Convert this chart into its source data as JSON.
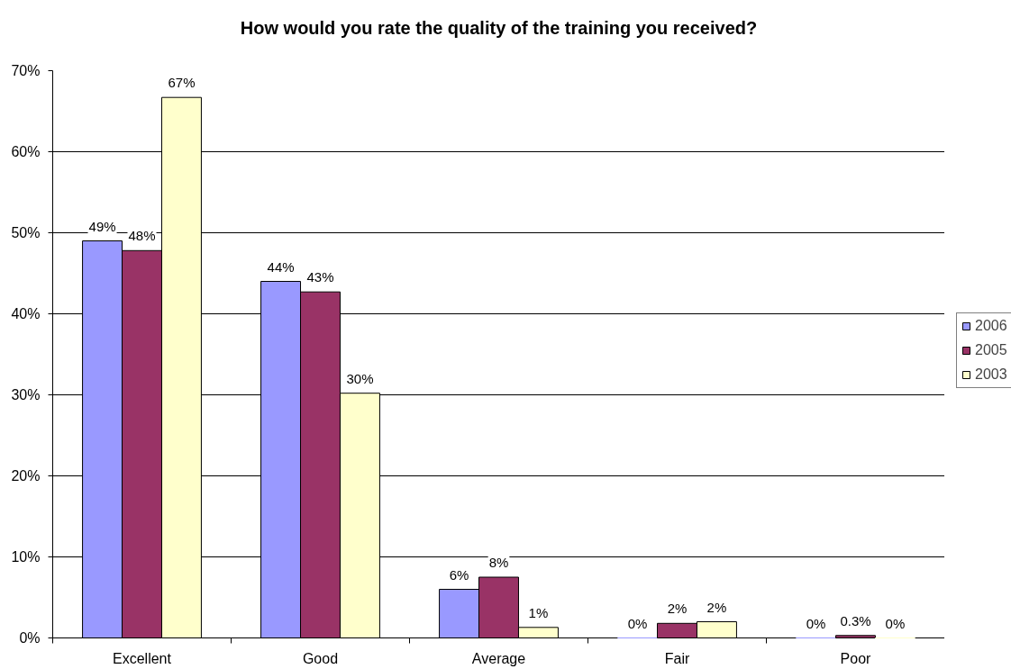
{
  "chart_data": {
    "type": "bar",
    "title": "How would you rate the quality of the training you received?",
    "categories": [
      "Excellent",
      "Good",
      "Average",
      "Fair",
      "Poor"
    ],
    "series": [
      {
        "name": "2006",
        "color": "#9999ff",
        "values": [
          49,
          44,
          6,
          0,
          0
        ],
        "value_labels": [
          "49%",
          "44%",
          "6%",
          "0%",
          "0%"
        ]
      },
      {
        "name": "2005",
        "color": "#993366",
        "values": [
          47.8,
          42.7,
          7.5,
          1.8,
          0.3
        ],
        "value_labels": [
          "48%",
          "43%",
          "8%",
          "2%",
          "0.3%"
        ]
      },
      {
        "name": "2003",
        "color": "#ffffcc",
        "values": [
          66.7,
          30.2,
          1.3,
          2.0,
          0
        ],
        "value_labels": [
          "67%",
          "30%",
          "1%",
          "2%",
          "0%"
        ]
      }
    ],
    "ylim": [
      0,
      70
    ],
    "yticks": [
      {
        "value": 0,
        "label": "0%"
      },
      {
        "value": 10,
        "label": "10%"
      },
      {
        "value": 20,
        "label": "20%"
      },
      {
        "value": 30,
        "label": "30%"
      },
      {
        "value": 40,
        "label": "40%"
      },
      {
        "value": 50,
        "label": "50%"
      },
      {
        "value": 60,
        "label": "60%"
      },
      {
        "value": 70,
        "label": "70%"
      }
    ],
    "grid": "y",
    "legend": "right"
  }
}
